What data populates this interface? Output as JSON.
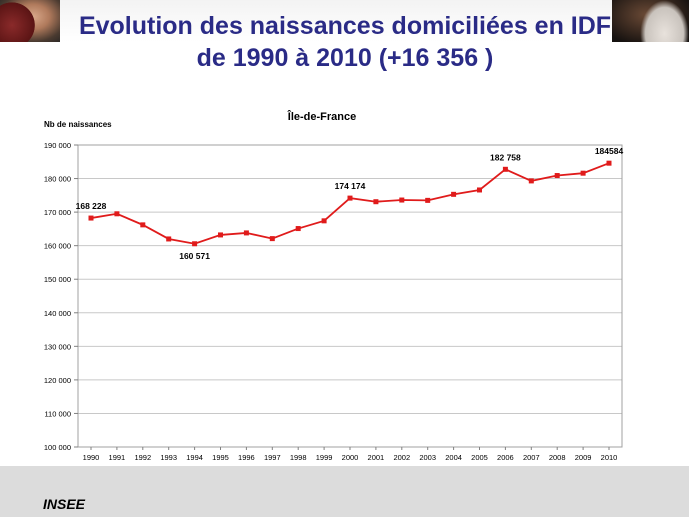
{
  "slide": {
    "title_line1": "Evolution des naissances domiciliées en IDF",
    "title_line2": "de 1990 à 2010  (+16 356 )",
    "footer": "INSEE"
  },
  "colors": {
    "title": "#2a2b86",
    "series": "#e01b1b",
    "grid": "#c8c8c8",
    "footer_band": "#dcdcdc"
  },
  "chart_data": {
    "type": "line",
    "title": "Île-de-France",
    "xlabel": "",
    "ylabel": "Nb de naissances",
    "x": [
      "1990",
      "1991",
      "1992",
      "1993",
      "1994",
      "1995",
      "1996",
      "1997",
      "1998",
      "1999",
      "2000",
      "2001",
      "2002",
      "2003",
      "2004",
      "2005",
      "2006",
      "2007",
      "2008",
      "2009",
      "2010"
    ],
    "series": [
      {
        "values": [
          168228,
          169500,
          166200,
          162000,
          160571,
          163200,
          163800,
          162100,
          165100,
          167400,
          174174,
          173100,
          173600,
          173500,
          175300,
          176600,
          182758,
          179300,
          180900,
          181600,
          184584
        ]
      }
    ],
    "ylim": [
      100000,
      190000
    ],
    "yticks": [
      "100 000",
      "110 000",
      "120 000",
      "130 000",
      "140 000",
      "150 000",
      "160 000",
      "170 000",
      "180 000",
      "190 000"
    ],
    "ytick_values": [
      100000,
      110000,
      120000,
      130000,
      140000,
      150000,
      160000,
      170000,
      180000,
      190000
    ],
    "data_labels": [
      {
        "index": 0,
        "text": "168 228",
        "position": "above"
      },
      {
        "index": 4,
        "text": "160 571",
        "position": "below"
      },
      {
        "index": 10,
        "text": "174 174",
        "position": "above"
      },
      {
        "index": 16,
        "text": "182 758",
        "position": "above"
      },
      {
        "index": 20,
        "text": "184584",
        "position": "above"
      }
    ],
    "grid": true,
    "legend": "none"
  }
}
